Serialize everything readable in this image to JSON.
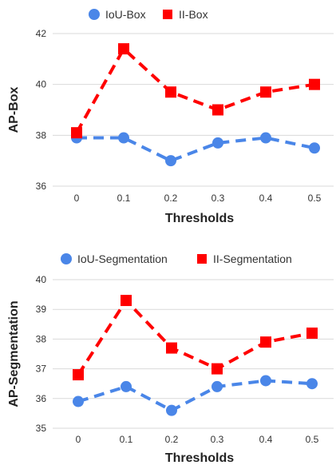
{
  "chart_data": [
    {
      "type": "line",
      "xlabel": "Thresholds",
      "ylabel": "AP-Box",
      "categories": [
        "0",
        "0.1",
        "0.2",
        "0.3",
        "0.4",
        "0.5"
      ],
      "ylim": [
        36,
        42
      ],
      "yticks": [
        "36",
        "38",
        "40",
        "42"
      ],
      "grid": true,
      "legend": "top",
      "series": [
        {
          "name": "IoU-Box",
          "values": [
            37.9,
            37.9,
            37.0,
            37.7,
            37.9,
            37.5
          ],
          "color": "#4a86e8",
          "marker": "circle"
        },
        {
          "name": "II-Box",
          "values": [
            38.1,
            41.4,
            39.7,
            39.0,
            39.7,
            40.0
          ],
          "color": "#ff0000",
          "marker": "square"
        }
      ]
    },
    {
      "type": "line",
      "xlabel": "Thresholds",
      "ylabel": "AP-Segmentation",
      "categories": [
        "0",
        "0.1",
        "0.2",
        "0.3",
        "0.4",
        "0.5"
      ],
      "ylim": [
        35,
        40
      ],
      "yticks": [
        "35",
        "36",
        "37",
        "38",
        "39",
        "40"
      ],
      "grid": true,
      "legend": "top",
      "series": [
        {
          "name": "IoU-Segmentation",
          "values": [
            35.9,
            36.4,
            35.6,
            36.4,
            36.6,
            36.5
          ],
          "color": "#4a86e8",
          "marker": "circle"
        },
        {
          "name": "II-Segmentation",
          "values": [
            36.8,
            39.3,
            37.7,
            37.0,
            37.9,
            38.2
          ],
          "color": "#ff0000",
          "marker": "square"
        }
      ]
    }
  ]
}
